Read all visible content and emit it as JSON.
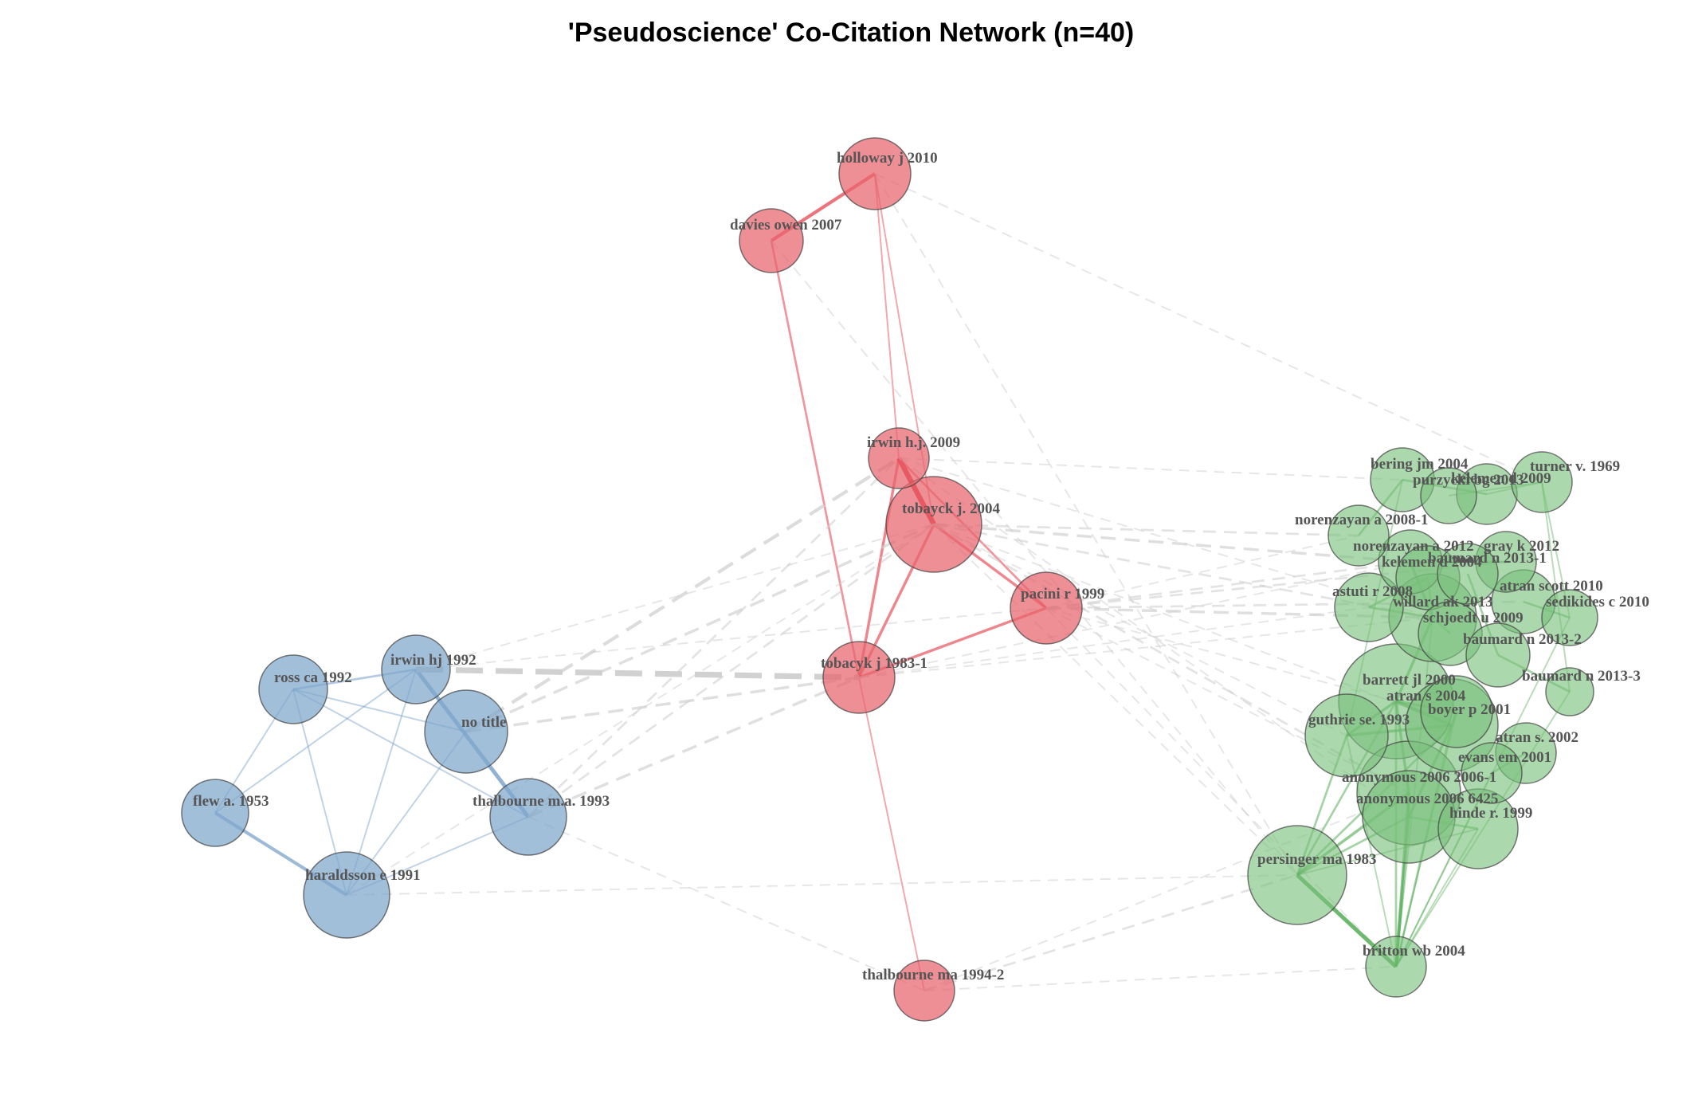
{
  "title": "'Pseudoscience' Co-Citation Network (n=40)",
  "colors": {
    "blue": "#7ea6cc",
    "red": "#e8646e",
    "green": "#79c07a",
    "edge_gray": "#cfcfcf",
    "edge_blue": "#6d98c4",
    "edge_red": "#e3303d",
    "edge_green": "#4aa84c"
  },
  "nodes": [
    {
      "id": "ross ca 1992",
      "cluster": "blue",
      "weight": 2
    },
    {
      "id": "irwin hj 1992",
      "cluster": "blue",
      "weight": 2
    },
    {
      "id": "no title",
      "cluster": "blue",
      "weight": 3
    },
    {
      "id": "flew a. 1953",
      "cluster": "blue",
      "weight": 2
    },
    {
      "id": "thalbourne m.a. 1993",
      "cluster": "blue",
      "weight": 2
    },
    {
      "id": "haraldsson e 1991",
      "cluster": "blue",
      "weight": 3
    },
    {
      "id": "holloway j 2010",
      "cluster": "red",
      "weight": 2
    },
    {
      "id": "davies owen 2007",
      "cluster": "red",
      "weight": 1
    },
    {
      "id": "irwin h.j. 2009",
      "cluster": "red",
      "weight": 1
    },
    {
      "id": "tobayck j. 2004",
      "cluster": "red",
      "weight": 4
    },
    {
      "id": "pacini r 1999",
      "cluster": "red",
      "weight": 2
    },
    {
      "id": "tobacyk j 1983-1",
      "cluster": "red",
      "weight": 2
    },
    {
      "id": "thalbourne ma 1994-2",
      "cluster": "red",
      "weight": 1
    },
    {
      "id": "bering jm 2004",
      "cluster": "green",
      "weight": 1
    },
    {
      "id": "purzycki bg 2013",
      "cluster": "green",
      "weight": 1
    },
    {
      "id": "kelemen d 2009",
      "cluster": "green",
      "weight": 1
    },
    {
      "id": "turner v. 1969",
      "cluster": "green",
      "weight": 1
    },
    {
      "id": "norenzayan a 2008-1",
      "cluster": "green",
      "weight": 1
    },
    {
      "id": "norenzayan a 2012",
      "cluster": "green",
      "weight": 1
    },
    {
      "id": "gray k 2012",
      "cluster": "green",
      "weight": 1
    },
    {
      "id": "kelemen d 2004",
      "cluster": "green",
      "weight": 1
    },
    {
      "id": "baumard n 2013-1",
      "cluster": "green",
      "weight": 1
    },
    {
      "id": "atran scott 2010",
      "cluster": "green",
      "weight": 1
    },
    {
      "id": "astuti r 2008",
      "cluster": "green",
      "weight": 1
    },
    {
      "id": "willard ak 2013",
      "cluster": "green",
      "weight": 3
    },
    {
      "id": "sedikides c 2010",
      "cluster": "green",
      "weight": 1
    },
    {
      "id": "schjoedt u 2009",
      "cluster": "green",
      "weight": 1
    },
    {
      "id": "baumard n 2013-2",
      "cluster": "green",
      "weight": 1
    },
    {
      "id": "barrett jl 2000",
      "cluster": "green",
      "weight": 4
    },
    {
      "id": "baumard n 2013-3",
      "cluster": "green",
      "weight": 1
    },
    {
      "id": "atran s 2004",
      "cluster": "green",
      "weight": 2
    },
    {
      "id": "boyer p 2001",
      "cluster": "green",
      "weight": 3
    },
    {
      "id": "guthrie se. 1993",
      "cluster": "green",
      "weight": 2
    },
    {
      "id": "atran s. 2002",
      "cluster": "green",
      "weight": 1
    },
    {
      "id": "evans em 2001",
      "cluster": "green",
      "weight": 1
    },
    {
      "id": "anonymous 2006 2006-1",
      "cluster": "green",
      "weight": 3
    },
    {
      "id": "anonymous 2006 6425",
      "cluster": "green",
      "weight": 3
    },
    {
      "id": "hinde r. 1999",
      "cluster": "green",
      "weight": 2
    },
    {
      "id": "persinger ma 1983",
      "cluster": "green",
      "weight": 3
    },
    {
      "id": "britton wb 2004",
      "cluster": "green",
      "weight": 1
    }
  ],
  "edges": [
    [
      "ross ca 1992",
      "irwin hj 1992",
      2,
      "solid"
    ],
    [
      "ross ca 1992",
      "no title",
      1,
      "solid"
    ],
    [
      "ross ca 1992",
      "flew a. 1953",
      1,
      "solid"
    ],
    [
      "ross ca 1992",
      "haraldsson e 1991",
      1,
      "solid"
    ],
    [
      "ross ca 1992",
      "thalbourne m.a. 1993",
      1,
      "solid"
    ],
    [
      "irwin hj 1992",
      "thalbourne m.a. 1993",
      5,
      "solid"
    ],
    [
      "irwin hj 1992",
      "flew a. 1953",
      1,
      "solid"
    ],
    [
      "irwin hj 1992",
      "haraldsson e 1991",
      1,
      "solid"
    ],
    [
      "no title",
      "haraldsson e 1991",
      1,
      "solid"
    ],
    [
      "flew a. 1953",
      "haraldsson e 1991",
      4,
      "solid"
    ],
    [
      "thalbourne m.a. 1993",
      "haraldsson e 1991",
      1,
      "solid"
    ],
    [
      "holloway j 2010",
      "davies owen 2007",
      4,
      "solid"
    ],
    [
      "holloway j 2010",
      "irwin h.j. 2009",
      1,
      "solid"
    ],
    [
      "holloway j 2010",
      "tobayck j. 2004",
      1,
      "solid"
    ],
    [
      "davies owen 2007",
      "tobacyk j 1983-1",
      2,
      "solid"
    ],
    [
      "irwin h.j. 2009",
      "tobayck j. 2004",
      7,
      "solid"
    ],
    [
      "irwin h.j. 2009",
      "pacini r 1999",
      2,
      "solid"
    ],
    [
      "irwin h.j. 2009",
      "tobacyk j 1983-1",
      3,
      "solid"
    ],
    [
      "tobayck j. 2004",
      "tobacyk j 1983-1",
      3,
      "solid"
    ],
    [
      "tobayck j. 2004",
      "pacini r 1999",
      3,
      "solid"
    ],
    [
      "pacini r 1999",
      "tobacyk j 1983-1",
      3,
      "solid"
    ],
    [
      "tobacyk j 1983-1",
      "thalbourne ma 1994-2",
      1,
      "solid"
    ],
    [
      "irwin hj 1992",
      "tobacyk j 1983-1",
      8,
      "dashed"
    ],
    [
      "no title",
      "tobacyk j 1983-1",
      3,
      "dashed"
    ],
    [
      "no title",
      "irwin h.j. 2009",
      4,
      "dashed"
    ],
    [
      "no title",
      "tobayck j. 2004",
      3,
      "dashed"
    ],
    [
      "thalbourne m.a. 1993",
      "tobacyk j 1983-1",
      3,
      "dashed"
    ],
    [
      "thalbourne m.a. 1993",
      "irwin h.j. 2009",
      2,
      "dashed"
    ],
    [
      "thalbourne m.a. 1993",
      "tobayck j. 2004",
      2,
      "dashed"
    ],
    [
      "thalbourne m.a. 1993",
      "thalbourne ma 1994-2",
      1,
      "dashed"
    ],
    [
      "irwin hj 1992",
      "tobayck j. 2004",
      1,
      "dashed"
    ],
    [
      "irwin hj 1992",
      "pacini r 1999",
      1,
      "dashed"
    ],
    [
      "haraldsson e 1991",
      "persinger ma 1983",
      1,
      "dashed"
    ],
    [
      "haraldsson e 1991",
      "tobayck j. 2004",
      1,
      "dashed"
    ],
    [
      "holloway j 2010",
      "turner v. 1969",
      1,
      "dashed"
    ],
    [
      "holloway j 2010",
      "persinger ma 1983",
      1,
      "dashed"
    ],
    [
      "davies owen 2007",
      "persinger ma 1983",
      1,
      "dashed"
    ],
    [
      "irwin h.j. 2009",
      "bering jm 2004",
      1,
      "dashed"
    ],
    [
      "irwin h.j. 2009",
      "willard ak 2013",
      1,
      "dashed"
    ],
    [
      "irwin h.j. 2009",
      "anonymous 2006 6425",
      1,
      "dashed"
    ],
    [
      "tobayck j. 2004",
      "norenzayan a 2008-1",
      2,
      "dashed"
    ],
    [
      "tobayck j. 2004",
      "norenzayan a 2012",
      3,
      "dashed"
    ],
    [
      "tobayck j. 2004",
      "willard ak 2013",
      2,
      "dashed"
    ],
    [
      "tobayck j. 2004",
      "boyer p 2001",
      1,
      "dashed"
    ],
    [
      "tobayck j. 2004",
      "anonymous 2006 2006-1",
      2,
      "dashed"
    ],
    [
      "tobayck j. 2004",
      "guthrie se. 1993",
      1,
      "dashed"
    ],
    [
      "tobayck j. 2004",
      "persinger ma 1983",
      1,
      "dashed"
    ],
    [
      "pacini r 1999",
      "willard ak 2013",
      3,
      "dashed"
    ],
    [
      "pacini r 1999",
      "norenzayan a 2012",
      2,
      "dashed"
    ],
    [
      "pacini r 1999",
      "norenzayan a 2008-1",
      1,
      "dashed"
    ],
    [
      "pacini r 1999",
      "atran scott 2010",
      2,
      "dashed"
    ],
    [
      "pacini r 1999",
      "gray k 2012",
      2,
      "dashed"
    ],
    [
      "pacini r 1999",
      "barrett jl 2000",
      1,
      "dashed"
    ],
    [
      "pacini r 1999",
      "anonymous 2006 2006-1",
      1,
      "dashed"
    ],
    [
      "pacini r 1999",
      "britton wb 2004",
      1,
      "dashed"
    ],
    [
      "tobacyk j 1983-1",
      "willard ak 2013",
      1,
      "dashed"
    ],
    [
      "tobacyk j 1983-1",
      "norenzayan a 2012",
      1,
      "dashed"
    ],
    [
      "tobacyk j 1983-1",
      "astuti r 2008",
      1,
      "dashed"
    ],
    [
      "thalbourne ma 1994-2",
      "persinger ma 1983",
      2,
      "dashed"
    ],
    [
      "thalbourne ma 1994-2",
      "britton wb 2004",
      1,
      "dashed"
    ],
    [
      "thalbourne ma 1994-2",
      "anonymous 2006 2006-1",
      1,
      "dashed"
    ],
    [
      "persinger ma 1983",
      "britton wb 2004",
      5,
      "solid"
    ],
    [
      "persinger ma 1983",
      "guthrie se. 1993",
      2,
      "solid"
    ],
    [
      "persinger ma 1983",
      "barrett jl 2000",
      2,
      "solid"
    ],
    [
      "persinger ma 1983",
      "anonymous 2006 2006-1",
      3,
      "solid"
    ],
    [
      "persinger ma 1983",
      "anonymous 2006 6425",
      2,
      "solid"
    ],
    [
      "persinger ma 1983",
      "boyer p 2001",
      2,
      "solid"
    ],
    [
      "persinger ma 1983",
      "hinde r. 1999",
      1,
      "solid"
    ],
    [
      "britton wb 2004",
      "anonymous 2006 2006-1",
      3,
      "solid"
    ],
    [
      "britton wb 2004",
      "anonymous 2006 6425",
      3,
      "solid"
    ],
    [
      "britton wb 2004",
      "guthrie se. 1993",
      1,
      "solid"
    ],
    [
      "britton wb 2004",
      "barrett jl 2000",
      2,
      "solid"
    ],
    [
      "britton wb 2004",
      "boyer p 2001",
      2,
      "solid"
    ],
    [
      "britton wb 2004",
      "hinde r. 1999",
      1,
      "solid"
    ],
    [
      "britton wb 2004",
      "atran s 2004",
      1,
      "solid"
    ],
    [
      "britton wb 2004",
      "evans em 2001",
      1,
      "solid"
    ],
    [
      "britton wb 2004",
      "willard ak 2013",
      1,
      "solid"
    ],
    [
      "britton wb 2004",
      "sedikides c 2010",
      1,
      "solid"
    ],
    [
      "britton wb 2004",
      "baumard n 2013-3",
      1,
      "solid"
    ],
    [
      "guthrie se. 1993",
      "barrett jl 2000",
      3,
      "solid"
    ],
    [
      "guthrie se. 1993",
      "boyer p 2001",
      3,
      "solid"
    ],
    [
      "barrett jl 2000",
      "boyer p 2001",
      4,
      "solid"
    ],
    [
      "barrett jl 2000",
      "atran s 2004",
      3,
      "solid"
    ],
    [
      "barrett jl 2000",
      "willard ak 2013",
      3,
      "solid"
    ],
    [
      "barrett jl 2000",
      "anonymous 2006 2006-1",
      3,
      "solid"
    ],
    [
      "boyer p 2001",
      "atran s 2004",
      3,
      "solid"
    ],
    [
      "boyer p 2001",
      "anonymous 2006 6425",
      3,
      "solid"
    ],
    [
      "willard ak 2013",
      "norenzayan a 2012",
      3,
      "solid"
    ],
    [
      "willard ak 2013",
      "schjoedt u 2009",
      2,
      "solid"
    ],
    [
      "willard ak 2013",
      "astuti r 2008",
      2,
      "solid"
    ],
    [
      "willard ak 2013",
      "kelemen d 2004",
      2,
      "solid"
    ],
    [
      "norenzayan a 2012",
      "gray k 2012",
      2,
      "solid"
    ],
    [
      "norenzayan a 2008-1",
      "bering jm 2004",
      2,
      "solid"
    ],
    [
      "bering jm 2004",
      "kelemen d 2009",
      2,
      "solid"
    ],
    [
      "purzycki bg 2013",
      "turner v. 1969",
      1,
      "solid"
    ],
    [
      "kelemen d 2009",
      "turner v. 1969",
      1,
      "solid"
    ],
    [
      "baumard n 2013-1",
      "baumard n 2013-2",
      2,
      "solid"
    ],
    [
      "baumard n 2013-2",
      "baumard n 2013-3",
      2,
      "solid"
    ],
    [
      "atran scott 2010",
      "sedikides c 2010",
      2,
      "solid"
    ],
    [
      "atran s. 2002",
      "evans em 2001",
      2,
      "solid"
    ],
    [
      "hinde r. 1999",
      "anonymous 2006 6425",
      2,
      "solid"
    ],
    [
      "anonymous 2006 2006-1",
      "anonymous 2006 6425",
      3,
      "solid"
    ],
    [
      "turner v. 1969",
      "sedikides c 2010",
      1,
      "solid"
    ],
    [
      "turner v. 1969",
      "baumard n 2013-3",
      1,
      "solid"
    ],
    [
      "guthrie se. 1993",
      "bering jm 2004",
      1,
      "solid"
    ],
    [
      "astuti r 2008",
      "kelemen d 2004",
      2,
      "solid"
    ]
  ]
}
